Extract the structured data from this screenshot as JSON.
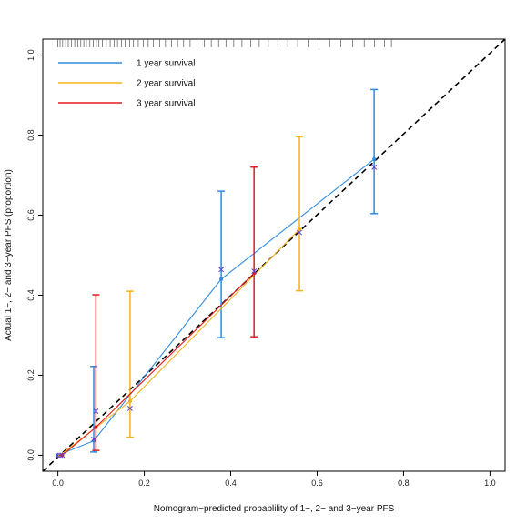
{
  "chart_data": {
    "type": "line",
    "xlabel": "Nomogram−predicted probablility of 1−, 2− and 3−year PFS",
    "ylabel": "Actual 1−, 2− and 3−year PFS (proportion)",
    "xlim": [
      -0.035,
      1.035
    ],
    "ylim": [
      -0.04,
      1.04
    ],
    "x_ticks": [
      "0.0",
      "0.2",
      "0.4",
      "0.6",
      "0.8",
      "1.0"
    ],
    "y_ticks": [
      "0.0",
      "0.2",
      "0.4",
      "0.6",
      "0.8",
      "1.0"
    ],
    "grid": false,
    "legend_position": "top-left",
    "reference_line": {
      "style": "dashed",
      "color": "#000000",
      "from": [
        -0.035,
        -0.04
      ],
      "to": [
        1.035,
        1.04
      ]
    },
    "series": [
      {
        "name": "1 year survival",
        "color": "#2f8be0",
        "x": [
          0.0,
          0.083,
          0.378,
          0.732
        ],
        "y": [
          0.0,
          0.036,
          0.44,
          0.74
        ],
        "ci_low": [
          null,
          0.008,
          0.294,
          0.604
        ],
        "ci_high": [
          null,
          0.222,
          0.66,
          0.914
        ],
        "cross_y": [
          0.0,
          0.04,
          0.464,
          0.72
        ]
      },
      {
        "name": "2 year survival",
        "color": "#f5b21a",
        "x": [
          0.005,
          0.167,
          0.559
        ],
        "y": [
          0.0,
          0.135,
          0.565
        ],
        "ci_low": [
          null,
          0.045,
          0.411
        ],
        "ci_high": [
          null,
          0.41,
          0.796
        ],
        "cross_y": [
          0.0,
          0.117,
          0.557
        ]
      },
      {
        "name": "3 year survival",
        "color": "#e41a1c",
        "x": [
          0.01,
          0.088,
          0.454
        ],
        "y": [
          0.0,
          0.07,
          0.455
        ],
        "ci_low": [
          null,
          0.012,
          0.296
        ],
        "ci_high": [
          null,
          0.401,
          0.72
        ],
        "cross_y": [
          0.0,
          0.11,
          0.46
        ]
      }
    ],
    "rug_x": [
      0.0,
      0.005,
      0.011,
      0.018,
      0.024,
      0.031,
      0.039,
      0.046,
      0.053,
      0.06,
      0.066,
      0.074,
      0.082,
      0.089,
      0.095,
      0.103,
      0.112,
      0.121,
      0.13,
      0.138,
      0.147,
      0.156,
      0.166,
      0.175,
      0.186,
      0.198,
      0.209,
      0.221,
      0.236,
      0.249,
      0.263,
      0.277,
      0.291,
      0.306,
      0.322,
      0.339,
      0.355,
      0.372,
      0.389,
      0.407,
      0.426,
      0.446,
      0.466,
      0.487,
      0.509,
      0.532,
      0.555,
      0.579,
      0.604,
      0.629,
      0.655,
      0.682,
      0.709,
      0.733,
      0.756,
      0.772
    ]
  }
}
